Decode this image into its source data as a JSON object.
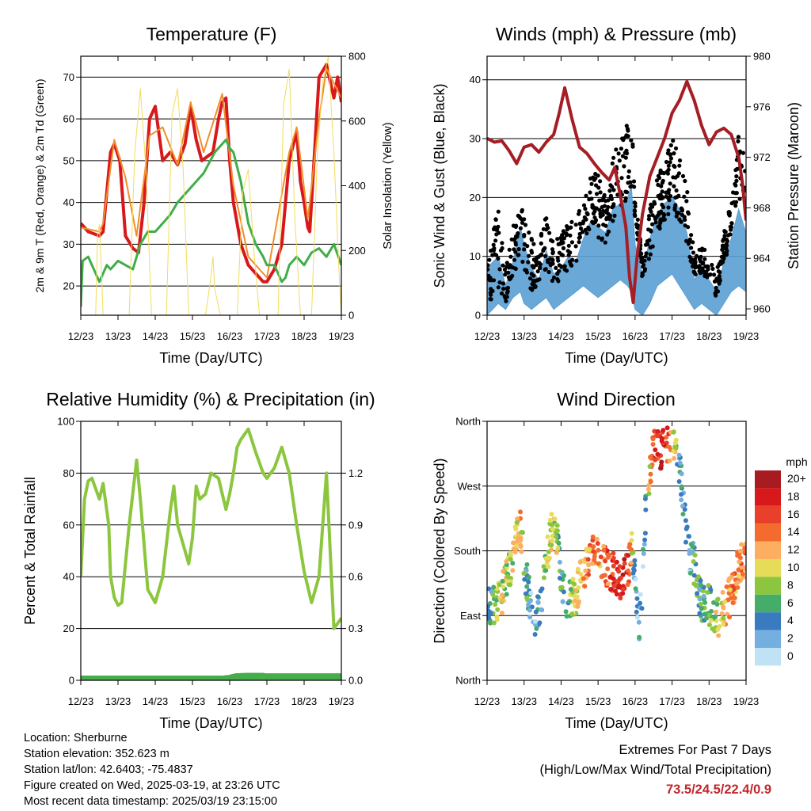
{
  "time_ticks": [
    "12/23",
    "13/23",
    "14/23",
    "15/23",
    "16/23",
    "17/23",
    "18/23",
    "19/23"
  ],
  "info": {
    "location": "Location: Sherburne",
    "elevation": "Station elevation: 352.623 m",
    "latlon": "Station lat/lon: 42.6403; -75.4837",
    "created": "Figure created on Wed, 2025-03-19, at 23:26 UTC",
    "recent": "Most recent data timestamp: 2025/03/19 23:15:00"
  },
  "extremes": {
    "title": "Extremes For Past 7 Days",
    "subtitle": "(High/Low/Max Wind/Total Precipitation)",
    "values": "73.5/24.5/22.4/0.9"
  },
  "chart_data": [
    {
      "id": "temperature",
      "type": "line",
      "title": "Temperature (F)",
      "xlabel": "Time (Day/UTC)",
      "ylabel": "2m & 9m T (Red, Orange) & 2m Td (Green)",
      "ylabel_right": "Solar Insolation (Yellow)",
      "xlim": [
        0,
        7
      ],
      "ylim": [
        13,
        75
      ],
      "yticks": [
        20,
        30,
        40,
        50,
        60,
        70
      ],
      "ylim_right": [
        0,
        800
      ],
      "yticks_right": [
        0,
        200,
        400,
        600,
        800
      ],
      "grid": true,
      "series": [
        {
          "color": "#d7191c",
          "width": 4,
          "x": [
            0.0,
            0.2,
            0.5,
            0.6,
            0.8,
            0.9,
            1.05,
            1.2,
            1.4,
            1.55,
            1.7,
            1.85,
            2.0,
            2.2,
            2.4,
            2.6,
            2.8,
            2.95,
            3.1,
            3.25,
            3.4,
            3.55,
            3.7,
            3.8,
            3.9,
            4.0,
            4.1,
            4.3,
            4.5,
            4.7,
            4.9,
            5.0,
            5.2,
            5.4,
            5.6,
            5.8,
            5.9,
            6.0,
            6.1,
            6.15,
            6.3,
            6.4,
            6.6,
            6.8,
            6.9,
            7.0
          ],
          "y": [
            35,
            33,
            32,
            33,
            52,
            54,
            50,
            32,
            29,
            28,
            40,
            60,
            63,
            50,
            52,
            49,
            54,
            63,
            55,
            50,
            51,
            52,
            60,
            64,
            65,
            50,
            40,
            30,
            25,
            23,
            21,
            21,
            24,
            30,
            50,
            57,
            45,
            40,
            34,
            33,
            55,
            70,
            73,
            65,
            70,
            64
          ]
        },
        {
          "color": "#f28e2b",
          "width": 2,
          "x": [
            0.0,
            0.5,
            0.6,
            0.9,
            1.2,
            1.5,
            1.85,
            2.2,
            2.6,
            2.95,
            3.3,
            3.8,
            4.1,
            4.5,
            5.0,
            5.6,
            5.8,
            6.1,
            6.4,
            6.6,
            7.0
          ],
          "y": [
            34,
            33,
            35,
            55,
            46,
            32,
            56,
            58,
            49,
            64,
            52,
            66,
            44,
            27,
            22,
            52,
            58,
            36,
            60,
            72,
            65
          ]
        },
        {
          "color": "#3fae49",
          "width": 3,
          "x": [
            0.0,
            0.05,
            0.2,
            0.5,
            0.7,
            0.8,
            1.0,
            1.2,
            1.4,
            1.6,
            1.8,
            2.0,
            2.2,
            2.4,
            2.6,
            2.8,
            3.0,
            3.3,
            3.6,
            3.8,
            3.9,
            4.0,
            4.1,
            4.3,
            4.5,
            4.7,
            4.9,
            5.0,
            5.2,
            5.4,
            5.5,
            5.6,
            5.8,
            6.0,
            6.2,
            6.4,
            6.6,
            6.8,
            7.0
          ],
          "y": [
            15,
            26,
            27,
            21,
            25,
            24,
            26,
            25,
            24,
            30,
            33,
            33,
            35,
            37,
            40,
            42,
            44,
            47,
            52,
            54,
            55,
            53,
            52,
            45,
            35,
            30,
            27,
            25,
            25,
            21,
            22,
            25,
            27,
            25,
            28,
            29,
            27,
            30,
            25
          ]
        },
        {
          "axis": "right",
          "color": "#f2dc5d",
          "width": 1,
          "x": [
            0.4,
            0.45,
            0.5,
            0.55,
            0.6,
            1.3,
            1.45,
            1.6,
            1.75,
            1.9,
            2.3,
            2.45,
            2.6,
            2.75,
            2.9,
            3.35,
            3.5,
            3.55,
            3.6,
            3.75,
            4.2,
            4.35,
            4.5,
            4.65,
            4.8,
            5.3,
            5.45,
            5.6,
            5.75,
            5.9,
            6.2,
            6.35,
            6.5,
            6.65,
            6.8,
            6.95,
            7.0
          ],
          "y": [
            0,
            250,
            280,
            150,
            0,
            0,
            500,
            700,
            450,
            0,
            0,
            620,
            700,
            450,
            0,
            0,
            120,
            180,
            80,
            0,
            0,
            380,
            450,
            200,
            0,
            0,
            650,
            760,
            300,
            0,
            0,
            480,
            720,
            800,
            500,
            100,
            0
          ]
        }
      ]
    },
    {
      "id": "winds",
      "type": "scatter",
      "title": "Winds (mph) & Pressure (mb)",
      "xlabel": "Time (Day/UTC)",
      "ylabel": "Sonic Wind & Gust (Blue, Black)",
      "ylabel_right": "Station Pressure (Maroon)",
      "xlim": [
        0,
        7
      ],
      "ylim": [
        0,
        44
      ],
      "yticks": [
        0,
        10,
        20,
        30,
        40
      ],
      "ylim_right": [
        959.5,
        980
      ],
      "yticks_right": [
        960,
        964,
        968,
        972,
        976,
        980
      ],
      "grid": true,
      "series": [
        {
          "style": "band",
          "color": "#5a9fd4",
          "x": [
            0.0,
            0.3,
            0.5,
            0.7,
            0.9,
            1.0,
            1.2,
            1.4,
            1.6,
            1.8,
            2.0,
            2.2,
            2.4,
            2.6,
            2.8,
            3.0,
            3.2,
            3.4,
            3.6,
            3.8,
            3.9,
            4.0,
            4.2,
            4.4,
            4.6,
            4.8,
            5.0,
            5.2,
            5.4,
            5.6,
            5.8,
            6.0,
            6.2,
            6.4,
            6.6,
            6.8,
            7.0
          ],
          "low": [
            0,
            2,
            1,
            3,
            4,
            2,
            1,
            2,
            3,
            1,
            2,
            3,
            4,
            5,
            4,
            3,
            4,
            5,
            6,
            5,
            4,
            1,
            0,
            2,
            5,
            6,
            7,
            5,
            3,
            1,
            2,
            1,
            0,
            2,
            4,
            5,
            4
          ],
          "high": [
            8,
            10,
            5,
            9,
            15,
            12,
            8,
            6,
            11,
            7,
            8,
            10,
            9,
            13,
            16,
            15,
            14,
            18,
            19,
            20,
            22,
            12,
            7,
            13,
            17,
            19,
            20,
            18,
            14,
            6,
            8,
            6,
            4,
            9,
            13,
            18,
            14
          ]
        },
        {
          "style": "dots",
          "color": "#000000",
          "x": [
            0.0,
            0.3,
            0.5,
            0.7,
            0.9,
            1.0,
            1.2,
            1.4,
            1.6,
            1.8,
            2.0,
            2.2,
            2.4,
            2.6,
            2.8,
            3.0,
            3.2,
            3.4,
            3.6,
            3.8,
            3.9,
            4.0,
            4.2,
            4.4,
            4.6,
            4.8,
            5.0,
            5.2,
            5.4,
            5.6,
            5.8,
            6.0,
            6.2,
            6.4,
            6.6,
            6.8,
            7.0
          ],
          "low": [
            1,
            4,
            2,
            6,
            10,
            8,
            4,
            5,
            8,
            4,
            6,
            8,
            9,
            12,
            14,
            13,
            12,
            16,
            18,
            20,
            22,
            16,
            6,
            10,
            14,
            16,
            18,
            16,
            12,
            6,
            7,
            6,
            3,
            8,
            14,
            20,
            16
          ],
          "high": [
            15,
            18,
            8,
            15,
            20,
            18,
            14,
            12,
            18,
            12,
            14,
            16,
            16,
            20,
            24,
            25,
            22,
            27,
            30,
            33,
            36,
            20,
            10,
            18,
            24,
            27,
            30,
            28,
            22,
            10,
            12,
            10,
            7,
            14,
            20,
            31,
            26
          ]
        },
        {
          "axis": "right",
          "color": "#a51d25",
          "width": 4,
          "x": [
            0.0,
            0.2,
            0.4,
            0.6,
            0.8,
            1.0,
            1.2,
            1.4,
            1.6,
            1.8,
            1.95,
            2.1,
            2.3,
            2.5,
            2.7,
            2.9,
            3.1,
            3.3,
            3.45,
            3.6,
            3.75,
            3.85,
            3.95,
            4.05,
            4.2,
            4.4,
            4.6,
            4.8,
            5.0,
            5.2,
            5.4,
            5.6,
            5.8,
            6.0,
            6.2,
            6.4,
            6.6,
            6.8,
            6.9,
            7.0
          ],
          "y": [
            973.5,
            973.2,
            973.3,
            972.5,
            971.5,
            972.8,
            973.0,
            972.4,
            973.2,
            973.8,
            975.5,
            977.5,
            975.0,
            972.8,
            972.3,
            971.5,
            970.8,
            970.2,
            971.2,
            969.0,
            966.5,
            962.5,
            960.5,
            964.0,
            967.5,
            970.5,
            972.0,
            973.5,
            975.5,
            976.5,
            978.0,
            976.5,
            974.5,
            973.0,
            974.0,
            974.3,
            973.8,
            972.0,
            970.0,
            967.0
          ]
        }
      ]
    },
    {
      "id": "humidity",
      "type": "line",
      "title": "Relative Humidity (%) & Precipitation (in)",
      "xlabel": "Time (Day/UTC)",
      "ylabel": "Percent & Total Rainfall",
      "xlim": [
        0,
        7
      ],
      "ylim": [
        0,
        100
      ],
      "yticks": [
        0,
        20,
        40,
        60,
        80,
        100
      ],
      "ylim_right": [
        0,
        1.5
      ],
      "yticks_right": [
        0.0,
        0.3,
        0.6,
        0.9,
        1.2
      ],
      "grid": true,
      "series": [
        {
          "color": "#8cc63e",
          "width": 4,
          "x": [
            0.0,
            0.1,
            0.2,
            0.3,
            0.5,
            0.6,
            0.75,
            0.8,
            0.9,
            1.0,
            1.1,
            1.3,
            1.5,
            1.6,
            1.8,
            2.0,
            2.2,
            2.4,
            2.5,
            2.6,
            2.8,
            2.9,
            3.0,
            3.1,
            3.2,
            3.35,
            3.5,
            3.7,
            3.9,
            4.0,
            4.1,
            4.2,
            4.3,
            4.5,
            4.7,
            4.9,
            5.0,
            5.2,
            5.4,
            5.6,
            5.8,
            6.0,
            6.2,
            6.4,
            6.6,
            6.8,
            7.0
          ],
          "y": [
            40,
            70,
            77,
            78,
            70,
            76,
            60,
            40,
            32,
            29,
            30,
            60,
            85,
            70,
            35,
            30,
            40,
            65,
            75,
            60,
            50,
            45,
            55,
            75,
            70,
            72,
            80,
            78,
            66,
            72,
            80,
            90,
            93,
            97,
            88,
            80,
            78,
            82,
            90,
            80,
            60,
            42,
            30,
            40,
            80,
            20,
            24
          ]
        },
        {
          "style": "circles",
          "color": "#45ad4a",
          "width": 12,
          "x": [
            0.0,
            3.9,
            4.0,
            4.02,
            4.05,
            4.1,
            4.15,
            4.2,
            4.3,
            4.4,
            4.5,
            4.7,
            5.0,
            6.0,
            7.0
          ],
          "y": [
            0,
            0,
            0.05,
            0.15,
            0.3,
            0.5,
            0.65,
            0.75,
            0.8,
            0.85,
            0.9,
            0.9,
            0.9,
            0.9,
            0.9
          ]
        }
      ]
    },
    {
      "id": "direction",
      "type": "scatter",
      "title": "Wind Direction",
      "xlabel": "Time (Day/UTC)",
      "ylabel": "Direction (Colored By Speed)",
      "xlim": [
        0,
        7
      ],
      "ylim": [
        0,
        360
      ],
      "ytick_labels": [
        "North",
        "East",
        "South",
        "West",
        "North"
      ],
      "grid": true,
      "colorbar": {
        "title": "mph",
        "labels": [
          "20+",
          "18",
          "16",
          "14",
          "12",
          "10",
          "8",
          "6",
          "4",
          "2",
          "0"
        ],
        "colors": [
          "#a81c21",
          "#d7191c",
          "#e8402a",
          "#f46b2e",
          "#fdae61",
          "#e6dc5a",
          "#8cc63e",
          "#45ad6a",
          "#3a7bbf",
          "#74afe0",
          "#bfe3f5"
        ]
      },
      "series": [
        {
          "style": "cloud",
          "x": [
            0.0,
            0.2,
            0.4,
            0.6,
            0.8,
            0.9,
            1.0,
            1.2,
            1.3,
            1.45,
            1.6,
            1.75,
            1.9,
            2.0,
            2.2,
            2.4,
            2.6,
            2.8,
            3.0,
            3.2,
            3.4,
            3.6,
            3.8,
            3.9,
            4.0,
            4.1,
            4.2,
            4.3,
            4.5,
            4.7,
            4.9,
            5.0,
            5.2,
            5.4,
            5.6,
            5.8,
            6.0,
            6.2,
            6.4,
            6.6,
            6.8,
            7.0
          ],
          "y": [
            100,
            105,
            120,
            150,
            195,
            215,
            160,
            95,
            90,
            100,
            170,
            210,
            190,
            130,
            110,
            120,
            150,
            175,
            175,
            160,
            150,
            140,
            150,
            180,
            160,
            50,
            140,
            250,
            320,
            320,
            325,
            325,
            300,
            190,
            160,
            105,
            105,
            85,
            100,
            120,
            160,
            170
          ],
          "speed": [
            4,
            6,
            10,
            8,
            10,
            12,
            6,
            3,
            3,
            4,
            9,
            10,
            8,
            4,
            6,
            10,
            12,
            14,
            13,
            14,
            16,
            17,
            18,
            12,
            2,
            4,
            2,
            6,
            16,
            18,
            15,
            12,
            4,
            2,
            6,
            5,
            7,
            9,
            11,
            14,
            13,
            15
          ]
        }
      ]
    }
  ]
}
